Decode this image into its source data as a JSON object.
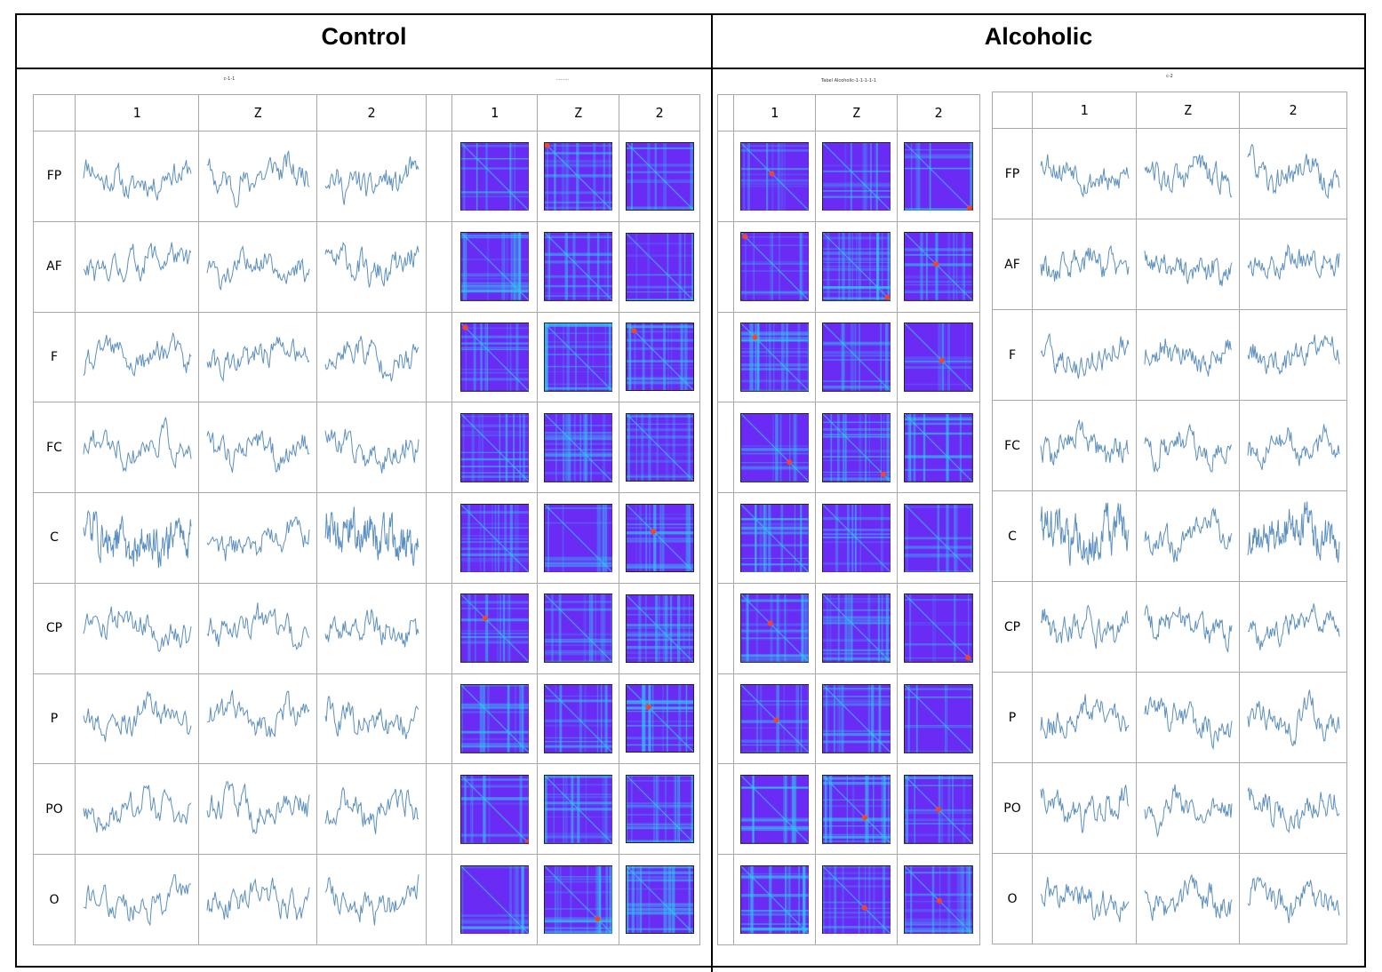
{
  "groups": {
    "control": "Control",
    "alcoholic": "Alcoholic"
  },
  "panels": {
    "control_signals": {
      "caption": "c-1-1"
    },
    "control_rp": {
      "caption": "·········"
    },
    "alcoholic_rp": {
      "caption": "Tabel Alcoholic-1-1-1-1-1"
    },
    "alcoholic_signals": {
      "caption": "c-2"
    }
  },
  "columns": [
    "1",
    "Z",
    "2"
  ],
  "channels": [
    "FP",
    "AF",
    "F",
    "FC",
    "C",
    "CP",
    "P",
    "PO",
    "O"
  ],
  "colors": {
    "signal": "#5b8fbf",
    "rp_background": "#6a2cf5",
    "rp_line": "#31c9f0",
    "rp_hot": "#f3452a",
    "grid_border": "#a8a8a8"
  }
}
